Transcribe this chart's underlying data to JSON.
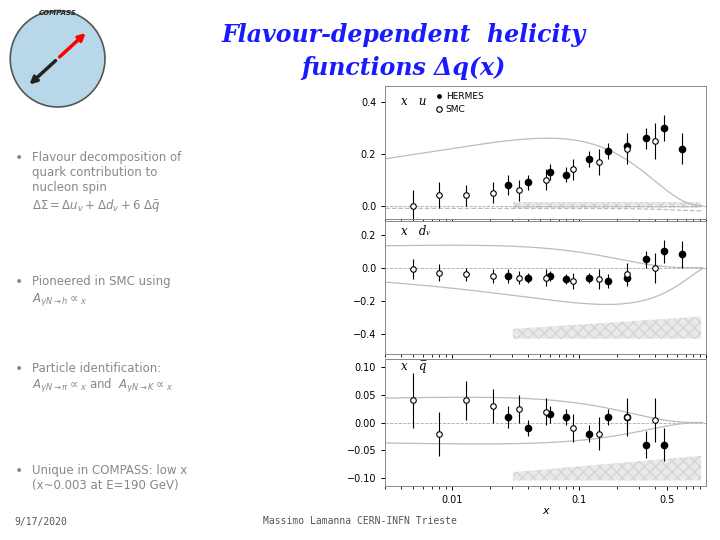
{
  "title_line1": "Flavour-dependent  helicity",
  "title_line2": "functions Δq(x)",
  "title_color": "#1a1aff",
  "bg_color": "#ffffff",
  "footer_left": "9/17/2020",
  "footer_center": "Massimo Lamanna CERN-INFN Trieste",
  "panel_labels": [
    "x   u",
    "x   dᵥ",
    "x   q̅"
  ],
  "panel1_ylim": [
    -0.05,
    0.46
  ],
  "panel2_ylim": [
    -0.52,
    0.28
  ],
  "panel3_ylim": [
    -0.115,
    0.115
  ],
  "panel1_yticks": [
    0.0,
    0.2,
    0.4
  ],
  "panel2_yticks": [
    -0.4,
    -0.2,
    0.0,
    0.2
  ],
  "panel3_yticks": [
    -0.1,
    -0.05,
    0.0,
    0.05,
    0.1
  ],
  "xlim_log": [
    0.003,
    1.0
  ],
  "hermes_u_x": [
    0.028,
    0.04,
    0.06,
    0.08,
    0.12,
    0.17,
    0.24,
    0.34,
    0.47,
    0.65
  ],
  "hermes_u_y": [
    0.08,
    0.09,
    0.13,
    0.12,
    0.18,
    0.21,
    0.23,
    0.26,
    0.3,
    0.22
  ],
  "hermes_u_ye": [
    0.04,
    0.03,
    0.03,
    0.03,
    0.03,
    0.03,
    0.03,
    0.04,
    0.05,
    0.06
  ],
  "smc_u_x": [
    0.005,
    0.008,
    0.013,
    0.021,
    0.034,
    0.055,
    0.09,
    0.145,
    0.24,
    0.4
  ],
  "smc_u_y": [
    0.0,
    0.04,
    0.04,
    0.05,
    0.06,
    0.1,
    0.14,
    0.17,
    0.22,
    0.25
  ],
  "smc_u_ye": [
    0.06,
    0.05,
    0.04,
    0.04,
    0.04,
    0.04,
    0.04,
    0.05,
    0.06,
    0.07
  ],
  "hermes_d_x": [
    0.028,
    0.04,
    0.06,
    0.08,
    0.12,
    0.17,
    0.24,
    0.34,
    0.47,
    0.65
  ],
  "hermes_d_y": [
    -0.05,
    -0.06,
    -0.05,
    -0.07,
    -0.06,
    -0.08,
    -0.06,
    0.05,
    0.1,
    0.08
  ],
  "hermes_d_ye": [
    0.04,
    0.03,
    0.03,
    0.03,
    0.03,
    0.04,
    0.04,
    0.05,
    0.07,
    0.08
  ],
  "smc_d_x": [
    0.005,
    0.008,
    0.013,
    0.021,
    0.034,
    0.055,
    0.09,
    0.145,
    0.24,
    0.4
  ],
  "smc_d_y": [
    -0.01,
    -0.03,
    -0.04,
    -0.05,
    -0.06,
    -0.06,
    -0.08,
    -0.07,
    -0.04,
    0.0
  ],
  "smc_d_ye": [
    0.06,
    0.05,
    0.04,
    0.04,
    0.04,
    0.05,
    0.05,
    0.06,
    0.07,
    0.09
  ],
  "hermes_q_x": [
    0.028,
    0.04,
    0.06,
    0.08,
    0.12,
    0.17,
    0.24,
    0.34,
    0.47
  ],
  "hermes_q_y": [
    0.01,
    -0.01,
    0.015,
    0.01,
    -0.02,
    0.01,
    0.01,
    -0.04,
    -0.04
  ],
  "hermes_q_ye": [
    0.02,
    0.015,
    0.015,
    0.015,
    0.015,
    0.015,
    0.02,
    0.025,
    0.03
  ],
  "smc_q_x": [
    0.005,
    0.008,
    0.013,
    0.021,
    0.034,
    0.055,
    0.09,
    0.145,
    0.24,
    0.4
  ],
  "smc_q_y": [
    0.04,
    -0.02,
    0.04,
    0.03,
    0.025,
    0.02,
    -0.01,
    -0.02,
    0.01,
    0.005
  ],
  "smc_q_ye": [
    0.05,
    0.04,
    0.035,
    0.03,
    0.025,
    0.025,
    0.025,
    0.03,
    0.035,
    0.04
  ]
}
